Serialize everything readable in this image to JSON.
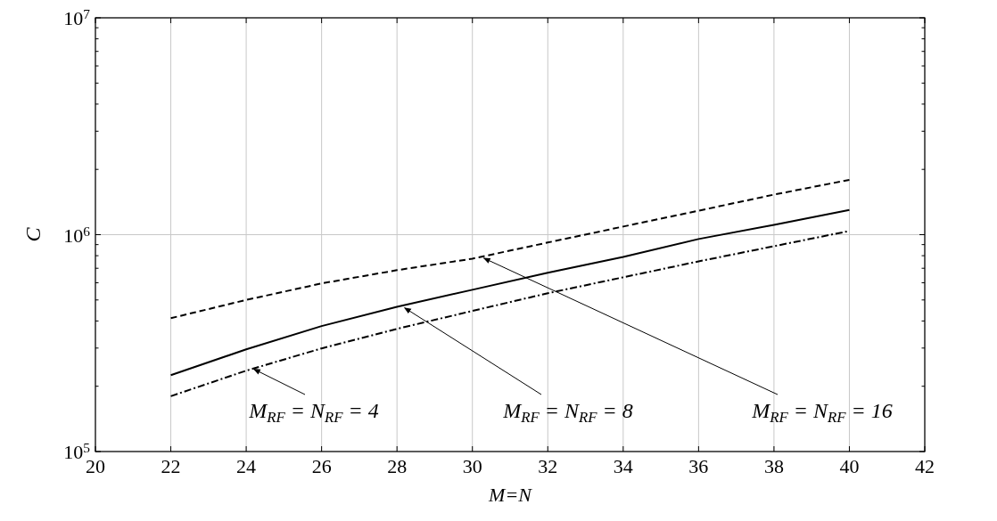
{
  "chart_data": {
    "type": "line",
    "xlabel": "M=N",
    "ylabel": "C",
    "log": "y",
    "grid": true,
    "xlim": [
      20,
      42
    ],
    "xticks": [
      20,
      22,
      24,
      26,
      28,
      30,
      32,
      34,
      36,
      38,
      40,
      42
    ],
    "ylim": [
      100000,
      10000000
    ],
    "yticks": [
      {
        "value": 100000,
        "label": "10$^{5}$"
      },
      {
        "value": 200000,
        "label": null
      },
      {
        "value": 300000,
        "label": null
      },
      {
        "value": 400000,
        "label": null
      },
      {
        "value": 500000,
        "label": null
      },
      {
        "value": 600000,
        "label": null
      },
      {
        "value": 700000,
        "label": null
      },
      {
        "value": 800000,
        "label": null
      },
      {
        "value": 900000,
        "label": null
      },
      {
        "value": 1000000,
        "label": "10$^{6}$"
      },
      {
        "value": 2000000,
        "label": null
      },
      {
        "value": 3000000,
        "label": null
      },
      {
        "value": 4000000,
        "label": null
      },
      {
        "value": 5000000,
        "label": null
      },
      {
        "value": 6000000,
        "label": null
      },
      {
        "value": 7000000,
        "label": null
      },
      {
        "value": 8000000,
        "label": null
      },
      {
        "value": 9000000,
        "label": null
      },
      {
        "value": 10000000,
        "label": "10$^{7}$"
      }
    ],
    "x": [
      22,
      24,
      26,
      28,
      30,
      32,
      34,
      36,
      38,
      40
    ],
    "series": [
      {
        "color": "#000000",
        "line_style": "dashed",
        "values": [
          412000,
          500000,
          596000,
          686000,
          775000,
          920000,
          1090000,
          1290000,
          1530000,
          1790000
        ]
      },
      {
        "color": "#000000",
        "line_style": "solid",
        "values": [
          225000,
          296000,
          379000,
          465000,
          557000,
          667000,
          790000,
          955000,
          1110000,
          1300000
        ]
      },
      {
        "color": "#000000",
        "line_style": "dashdot",
        "values": [
          180000,
          236000,
          299000,
          368000,
          445000,
          537000,
          636000,
          753000,
          885000,
          1040000
        ]
      }
    ],
    "annotations": [
      {
        "text": "M$_{RF}$ = N$_{RF}$ = 4",
        "x": 24.2,
        "y": 240000
      },
      {
        "text": "M$_{RF}$ = N$_{RF}$ = 8",
        "x": 28.2,
        "y": 460000
      },
      {
        "text": "M$_{RF}$ = N$_{RF}$ = 16",
        "x": 30.3,
        "y": 780000
      }
    ]
  }
}
